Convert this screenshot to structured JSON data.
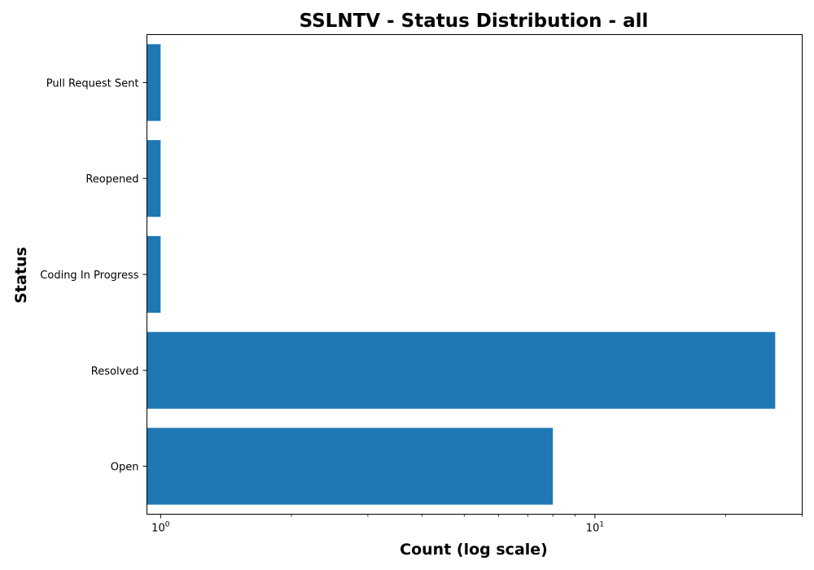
{
  "chart_data": {
    "type": "bar",
    "orientation": "horizontal",
    "title": "SSLNTV - Status Distribution - all",
    "xlabel": "Count (log scale)",
    "ylabel": "Status",
    "x_scale": "log",
    "xlim": [
      0.93,
      30
    ],
    "x_ticks": [
      {
        "value": 1,
        "base": "10",
        "exp": "0"
      },
      {
        "value": 10,
        "base": "10",
        "exp": "1"
      }
    ],
    "categories": [
      "Open",
      "Resolved",
      "Coding In Progress",
      "Reopened",
      "Pull Request Sent"
    ],
    "values": [
      8,
      26,
      1,
      1,
      1
    ],
    "bar_color": "#1f77b4",
    "grid": false,
    "legend": false
  }
}
